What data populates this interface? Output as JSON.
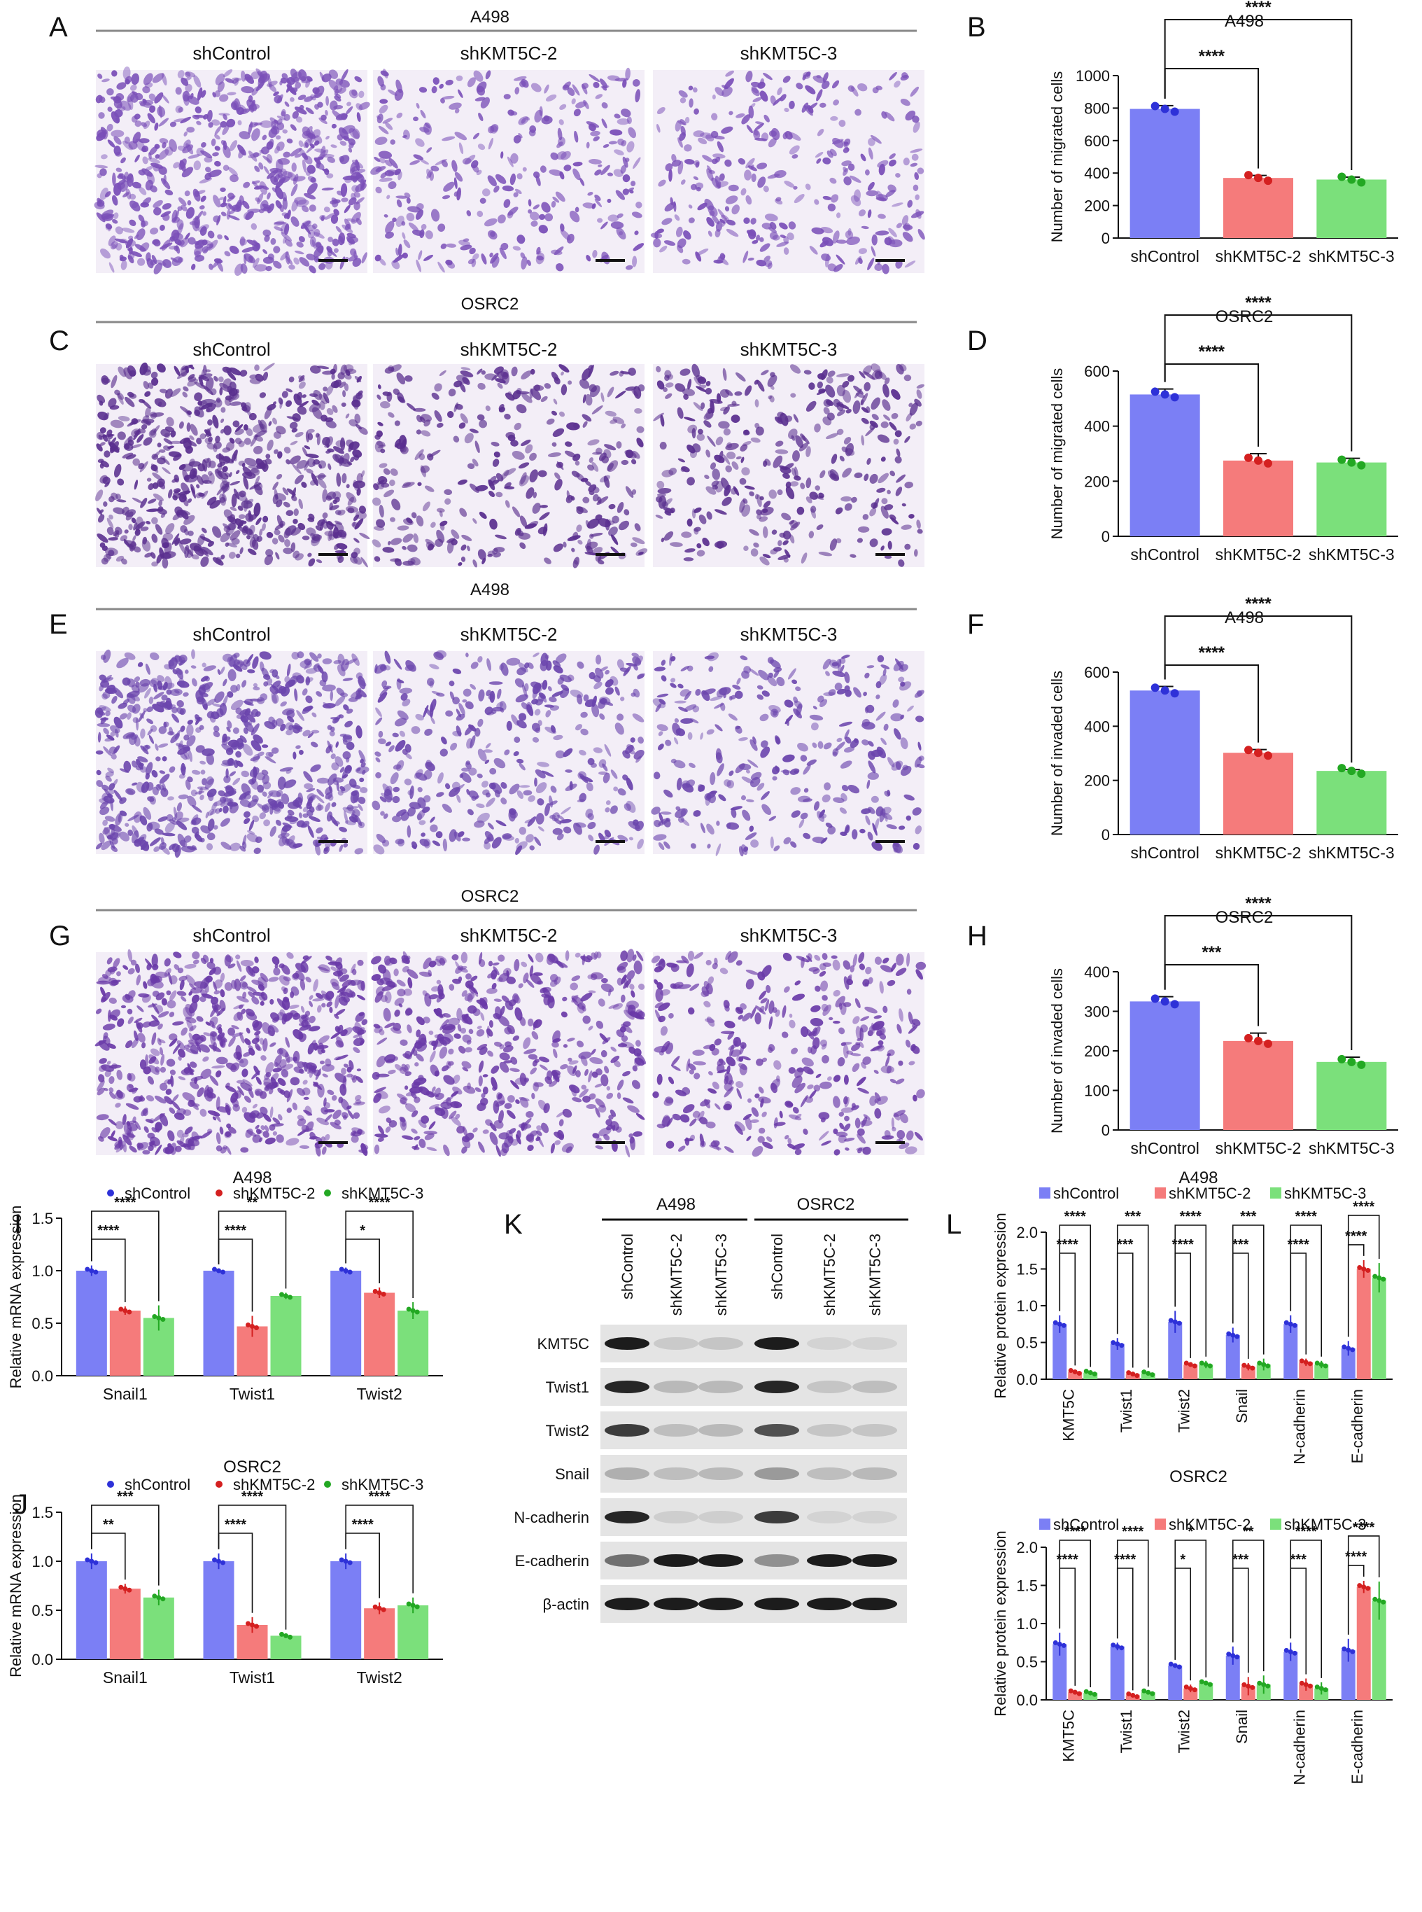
{
  "panel_letters": [
    "A",
    "B",
    "C",
    "D",
    "E",
    "F",
    "G",
    "H",
    "I",
    "J",
    "K",
    "L"
  ],
  "micrograph_rows": [
    {
      "letter": "A",
      "cell_line": "A498",
      "assay": "migration",
      "columns": [
        "shControl",
        "shKMT5C-2",
        "shKMT5C-3"
      ],
      "densities": [
        1.0,
        0.45,
        0.45
      ],
      "stain": "#7a4fb8"
    },
    {
      "letter": "C",
      "cell_line": "OSRC2",
      "assay": "migration",
      "columns": [
        "shControl",
        "shKMT5C-2",
        "shKMT5C-3"
      ],
      "densities": [
        1.0,
        0.5,
        0.5
      ],
      "stain": "#5a2f8f"
    },
    {
      "letter": "E",
      "cell_line": "A498",
      "assay": "invasion",
      "columns": [
        "shControl",
        "shKMT5C-2",
        "shKMT5C-3"
      ],
      "densities": [
        1.0,
        0.55,
        0.45
      ],
      "stain": "#6b45ad"
    },
    {
      "letter": "G",
      "cell_line": "OSRC2",
      "assay": "invasion",
      "columns": [
        "shControl",
        "shKMT5C-2",
        "shKMT5C-3"
      ],
      "densities": [
        1.0,
        0.75,
        0.55
      ],
      "stain": "#6a3aa8"
    }
  ],
  "colors": {
    "shControl": "#7b7ff5",
    "shKMT5C-2": "#f57b7b",
    "shKMT5C-3": "#7be07b",
    "dot_shControl": "#2e31d8",
    "dot_shKMT5C-2": "#d42020",
    "dot_shKMT5C-3": "#23a823"
  },
  "chart_data": [
    {
      "id": "B",
      "type": "bar",
      "title": "A498",
      "ylabel": "Number of migrated cells",
      "categories": [
        "shControl",
        "shKMT5C-2",
        "shKMT5C-3"
      ],
      "values": [
        795,
        370,
        360
      ],
      "errors": [
        20,
        15,
        15
      ],
      "ylim": [
        0,
        1000
      ],
      "yticks": [
        0,
        200,
        400,
        600,
        800,
        1000
      ],
      "comparisons": [
        {
          "from": 0,
          "to": 1,
          "label": "****"
        },
        {
          "from": 0,
          "to": 2,
          "label": "****"
        }
      ]
    },
    {
      "id": "D",
      "type": "bar",
      "title": "OSRC2",
      "ylabel": "Number of migrated cells",
      "categories": [
        "shControl",
        "shKMT5C-2",
        "shKMT5C-3"
      ],
      "values": [
        515,
        275,
        268
      ],
      "errors": [
        20,
        25,
        15
      ],
      "ylim": [
        0,
        600
      ],
      "yticks": [
        0,
        200,
        400,
        600
      ],
      "comparisons": [
        {
          "from": 0,
          "to": 1,
          "label": "****"
        },
        {
          "from": 0,
          "to": 2,
          "label": "****"
        }
      ]
    },
    {
      "id": "F",
      "type": "bar",
      "title": "A498",
      "ylabel": "Number of invaded cells",
      "categories": [
        "shControl",
        "shKMT5C-2",
        "shKMT5C-3"
      ],
      "values": [
        532,
        302,
        235
      ],
      "errors": [
        15,
        12,
        5
      ],
      "ylim": [
        0,
        600
      ],
      "yticks": [
        0,
        200,
        400,
        600
      ],
      "comparisons": [
        {
          "from": 0,
          "to": 1,
          "label": "****"
        },
        {
          "from": 0,
          "to": 2,
          "label": "****"
        }
      ]
    },
    {
      "id": "H",
      "type": "bar",
      "title": "OSRC2",
      "ylabel": "Number of invaded cells",
      "categories": [
        "shControl",
        "shKMT5C-2",
        "shKMT5C-3"
      ],
      "values": [
        325,
        225,
        172
      ],
      "errors": [
        12,
        20,
        12
      ],
      "ylim": [
        0,
        400
      ],
      "yticks": [
        0,
        100,
        200,
        300,
        400
      ],
      "comparisons": [
        {
          "from": 0,
          "to": 1,
          "label": "***"
        },
        {
          "from": 0,
          "to": 2,
          "label": "****"
        }
      ]
    },
    {
      "id": "I",
      "type": "bar",
      "title": "A498",
      "ylabel": "Relative mRNA expression",
      "legend": [
        "shControl",
        "shKMT5C-2",
        "shKMT5C-3"
      ],
      "categories": [
        "Snail1",
        "Twist1",
        "Twist2"
      ],
      "series": [
        {
          "name": "shControl",
          "values": [
            1.0,
            1.0,
            1.0
          ],
          "errors": [
            0.05,
            0.02,
            0.03
          ]
        },
        {
          "name": "shKMT5C-2",
          "values": [
            0.62,
            0.47,
            0.79
          ],
          "errors": [
            0.04,
            0.1,
            0.05
          ]
        },
        {
          "name": "shKMT5C-3",
          "values": [
            0.55,
            0.76,
            0.62
          ],
          "errors": [
            0.12,
            0.03,
            0.08
          ]
        }
      ],
      "ylim": [
        0,
        1.5
      ],
      "yticks": [
        "0.0",
        "0.5",
        "1.0",
        "1.5"
      ],
      "comparisons": [
        {
          "group": 0,
          "from": 0,
          "to": 1,
          "label": "****"
        },
        {
          "group": 0,
          "from": 0,
          "to": 2,
          "label": "****"
        },
        {
          "group": 1,
          "from": 0,
          "to": 1,
          "label": "****"
        },
        {
          "group": 1,
          "from": 0,
          "to": 2,
          "label": "**"
        },
        {
          "group": 2,
          "from": 0,
          "to": 1,
          "label": "*"
        },
        {
          "group": 2,
          "from": 0,
          "to": 2,
          "label": "****"
        }
      ]
    },
    {
      "id": "J",
      "type": "bar",
      "title": "OSRC2",
      "ylabel": "Relative mRNA expression",
      "legend": [
        "shControl",
        "shKMT5C-2",
        "shKMT5C-3"
      ],
      "categories": [
        "Snail1",
        "Twist1",
        "Twist2"
      ],
      "series": [
        {
          "name": "shControl",
          "values": [
            1.0,
            1.0,
            1.0
          ],
          "errors": [
            0.08,
            0.08,
            0.08
          ]
        },
        {
          "name": "shKMT5C-2",
          "values": [
            0.72,
            0.35,
            0.52
          ],
          "errors": [
            0.05,
            0.08,
            0.06
          ]
        },
        {
          "name": "shKMT5C-3",
          "values": [
            0.63,
            0.24,
            0.55
          ],
          "errors": [
            0.08,
            0.02,
            0.08
          ]
        }
      ],
      "ylim": [
        0,
        1.5
      ],
      "yticks": [
        "0.0",
        "0.5",
        "1.0",
        "1.5"
      ],
      "comparisons": [
        {
          "group": 0,
          "from": 0,
          "to": 1,
          "label": "**"
        },
        {
          "group": 0,
          "from": 0,
          "to": 2,
          "label": "***"
        },
        {
          "group": 1,
          "from": 0,
          "to": 1,
          "label": "****"
        },
        {
          "group": 1,
          "from": 0,
          "to": 2,
          "label": "****"
        },
        {
          "group": 2,
          "from": 0,
          "to": 1,
          "label": "****"
        },
        {
          "group": 2,
          "from": 0,
          "to": 2,
          "label": "****"
        }
      ]
    },
    {
      "id": "L1",
      "type": "bar",
      "title": "A498",
      "ylabel": "Relative protein expression",
      "legend": [
        "shControl",
        "shKMT5C-2",
        "shKMT5C-3"
      ],
      "categories": [
        "KMT5C",
        "Twist1",
        "Twist2",
        "Snail",
        "N-cadherin",
        "E-cadherin"
      ],
      "series": [
        {
          "name": "shControl",
          "values": [
            0.75,
            0.48,
            0.78,
            0.6,
            0.75,
            0.42
          ],
          "errors": [
            0.12,
            0.08,
            0.15,
            0.1,
            0.12,
            0.1
          ]
        },
        {
          "name": "shKMT5C-2",
          "values": [
            0.1,
            0.07,
            0.2,
            0.17,
            0.23,
            1.5
          ],
          "errors": [
            0.03,
            0.03,
            0.03,
            0.05,
            0.05,
            0.12
          ]
        },
        {
          "name": "shKMT5C-3",
          "values": [
            0.09,
            0.08,
            0.2,
            0.2,
            0.2,
            1.38
          ],
          "errors": [
            0.02,
            0.02,
            0.05,
            0.08,
            0.05,
            0.2
          ]
        }
      ],
      "ylim": [
        0,
        2.0
      ],
      "yticks": [
        "0.0",
        "0.5",
        "1.0",
        "1.5",
        "2.0"
      ],
      "comparisons": [
        {
          "group": 0,
          "from": 0,
          "to": 1,
          "label": "****"
        },
        {
          "group": 0,
          "from": 0,
          "to": 2,
          "label": "****"
        },
        {
          "group": 1,
          "from": 0,
          "to": 1,
          "label": "***"
        },
        {
          "group": 1,
          "from": 0,
          "to": 2,
          "label": "***"
        },
        {
          "group": 2,
          "from": 0,
          "to": 1,
          "label": "****"
        },
        {
          "group": 2,
          "from": 0,
          "to": 2,
          "label": "****"
        },
        {
          "group": 3,
          "from": 0,
          "to": 1,
          "label": "***"
        },
        {
          "group": 3,
          "from": 0,
          "to": 2,
          "label": "***"
        },
        {
          "group": 4,
          "from": 0,
          "to": 1,
          "label": "****"
        },
        {
          "group": 4,
          "from": 0,
          "to": 2,
          "label": "****"
        },
        {
          "group": 5,
          "from": 0,
          "to": 1,
          "label": "****"
        },
        {
          "group": 5,
          "from": 0,
          "to": 2,
          "label": "****"
        }
      ]
    },
    {
      "id": "L2",
      "type": "bar",
      "title": "OSRC2",
      "ylabel": "Relative protein expression",
      "legend": [
        "shControl",
        "shKMT5C-2",
        "shKMT5C-3"
      ],
      "categories": [
        "KMT5C",
        "Twist1",
        "Twist2",
        "Snail",
        "N-cadherin",
        "E-cadherin"
      ],
      "series": [
        {
          "name": "shControl",
          "values": [
            0.73,
            0.7,
            0.45,
            0.58,
            0.63,
            0.65
          ],
          "errors": [
            0.15,
            0.05,
            0.02,
            0.12,
            0.12,
            0.15
          ]
        },
        {
          "name": "shKMT5C-2",
          "values": [
            0.1,
            0.06,
            0.15,
            0.18,
            0.2,
            1.48
          ],
          "errors": [
            0.03,
            0.01,
            0.05,
            0.12,
            0.08,
            0.08
          ]
        },
        {
          "name": "shKMT5C-3",
          "values": [
            0.09,
            0.1,
            0.22,
            0.2,
            0.15,
            1.3
          ],
          "errors": [
            0.02,
            0.02,
            0.02,
            0.12,
            0.08,
            0.25
          ]
        }
      ],
      "ylim": [
        0,
        2.0
      ],
      "yticks": [
        "0.0",
        "0.5",
        "1.0",
        "1.5",
        "2.0"
      ],
      "comparisons": [
        {
          "group": 0,
          "from": 0,
          "to": 1,
          "label": "****"
        },
        {
          "group": 0,
          "from": 0,
          "to": 2,
          "label": "****"
        },
        {
          "group": 1,
          "from": 0,
          "to": 1,
          "label": "****"
        },
        {
          "group": 1,
          "from": 0,
          "to": 2,
          "label": "****"
        },
        {
          "group": 2,
          "from": 0,
          "to": 1,
          "label": "*"
        },
        {
          "group": 2,
          "from": 0,
          "to": 2,
          "label": "*"
        },
        {
          "group": 3,
          "from": 0,
          "to": 1,
          "label": "***"
        },
        {
          "group": 3,
          "from": 0,
          "to": 2,
          "label": "**"
        },
        {
          "group": 4,
          "from": 0,
          "to": 1,
          "label": "***"
        },
        {
          "group": 4,
          "from": 0,
          "to": 2,
          "label": "****"
        },
        {
          "group": 5,
          "from": 0,
          "to": 1,
          "label": "****"
        },
        {
          "group": 5,
          "from": 0,
          "to": 2,
          "label": "****"
        }
      ]
    }
  ],
  "blot": {
    "groups": [
      "A498",
      "OSRC2"
    ],
    "lanes": [
      "shControl",
      "shKMT5C-2",
      "shKMT5C-3",
      "shControl",
      "shKMT5C-2",
      "shKMT5C-3"
    ],
    "proteins": [
      "KMT5C",
      "Twist1",
      "Twist2",
      "Snail",
      "N-cadherin",
      "E-cadherin",
      "β-actin"
    ],
    "intensities": [
      [
        0.95,
        0.12,
        0.15,
        0.95,
        0.08,
        0.08
      ],
      [
        0.9,
        0.2,
        0.2,
        0.9,
        0.15,
        0.18
      ],
      [
        0.8,
        0.18,
        0.2,
        0.7,
        0.15,
        0.15
      ],
      [
        0.25,
        0.18,
        0.2,
        0.35,
        0.18,
        0.2
      ],
      [
        0.9,
        0.1,
        0.1,
        0.8,
        0.08,
        0.08
      ],
      [
        0.55,
        0.95,
        0.95,
        0.4,
        0.95,
        0.95
      ],
      [
        0.95,
        0.95,
        0.95,
        0.95,
        0.95,
        0.95
      ]
    ]
  }
}
